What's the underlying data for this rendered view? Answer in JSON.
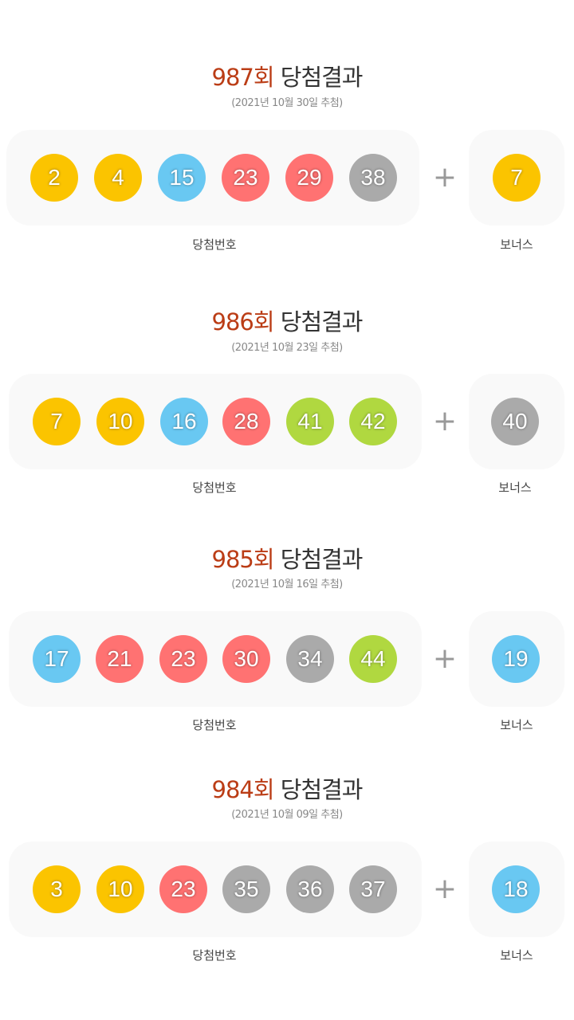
{
  "labels": {
    "round_suffix": "회",
    "result_text": "당첨결과",
    "main_label": "당첨번호",
    "bonus_label": "보너스",
    "plus": "+"
  },
  "colors": {
    "yellow": "#fbc400",
    "blue": "#69c8f2",
    "red": "#ff7272",
    "gray": "#aaaaaa",
    "green": "#b0d840"
  },
  "draws": [
    {
      "round": "987",
      "date": "(2021년 10월 30일 추첨)",
      "numbers": [
        "2",
        "4",
        "15",
        "23",
        "29",
        "38"
      ],
      "bonus": "7"
    },
    {
      "round": "986",
      "date": "(2021년 10월 23일 추첨)",
      "numbers": [
        "7",
        "10",
        "16",
        "28",
        "41",
        "42"
      ],
      "bonus": "40"
    },
    {
      "round": "985",
      "date": "(2021년 10월 16일 추첨)",
      "numbers": [
        "17",
        "21",
        "23",
        "30",
        "34",
        "44"
      ],
      "bonus": "19"
    },
    {
      "round": "984",
      "date": "(2021년 10월 09일 추첨)",
      "numbers": [
        "3",
        "10",
        "23",
        "35",
        "36",
        "37"
      ],
      "bonus": "18"
    }
  ]
}
